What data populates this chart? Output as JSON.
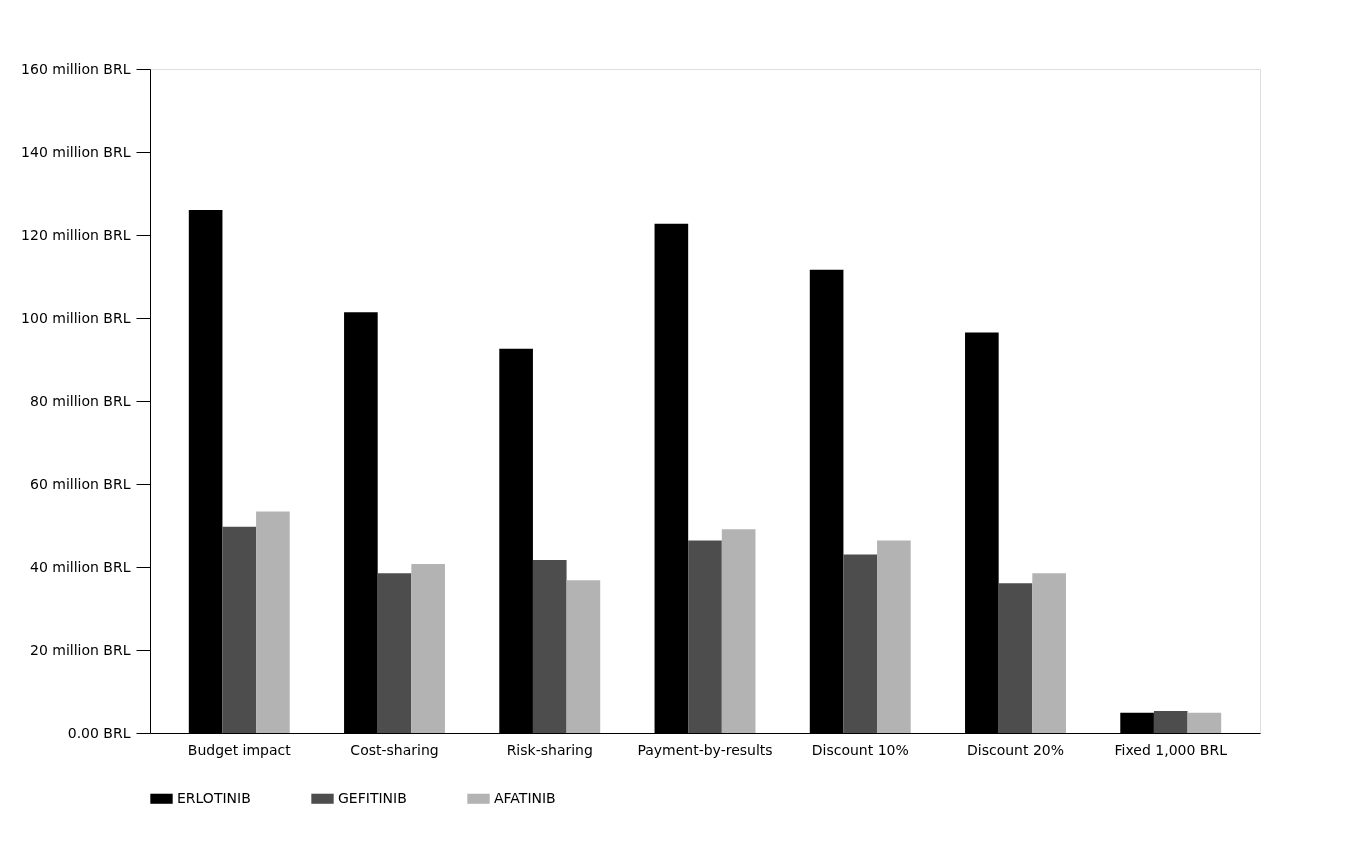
{
  "chart_data": {
    "type": "bar",
    "categories": [
      "Budget impact",
      "Cost-sharing",
      "Risk-sharing",
      "Payment-by-results",
      "Discount 10%",
      "Discount 20%",
      "Fixed 1,000 BRL"
    ],
    "series": [
      {
        "name": "ERLOTINIB",
        "color": "#000000",
        "values": [
          126.0,
          101.4,
          92.6,
          122.7,
          111.6,
          96.5,
          4.9
        ]
      },
      {
        "name": "GEFITINIB",
        "color": "#4d4d4d",
        "values": [
          49.7,
          38.5,
          41.7,
          46.4,
          43.0,
          36.1,
          5.3
        ]
      },
      {
        "name": "AFATINIB",
        "color": "#b3b3b3",
        "values": [
          53.4,
          40.7,
          36.8,
          49.1,
          46.4,
          38.5,
          4.9
        ]
      }
    ],
    "ylim": [
      0,
      160
    ],
    "yticks": [
      {
        "value": 0,
        "label": "0.00 BRL"
      },
      {
        "value": 20,
        "label": "20 million BRL"
      },
      {
        "value": 40,
        "label": "40 million BRL"
      },
      {
        "value": 60,
        "label": "60 million BRL"
      },
      {
        "value": 80,
        "label": "80 million BRL"
      },
      {
        "value": 100,
        "label": "100 million BRL"
      },
      {
        "value": 120,
        "label": "120 million BRL"
      },
      {
        "value": 140,
        "label": "140 million BRL"
      },
      {
        "value": 160,
        "label": "160 million BRL"
      }
    ],
    "grid": false,
    "legend": "bottom"
  }
}
